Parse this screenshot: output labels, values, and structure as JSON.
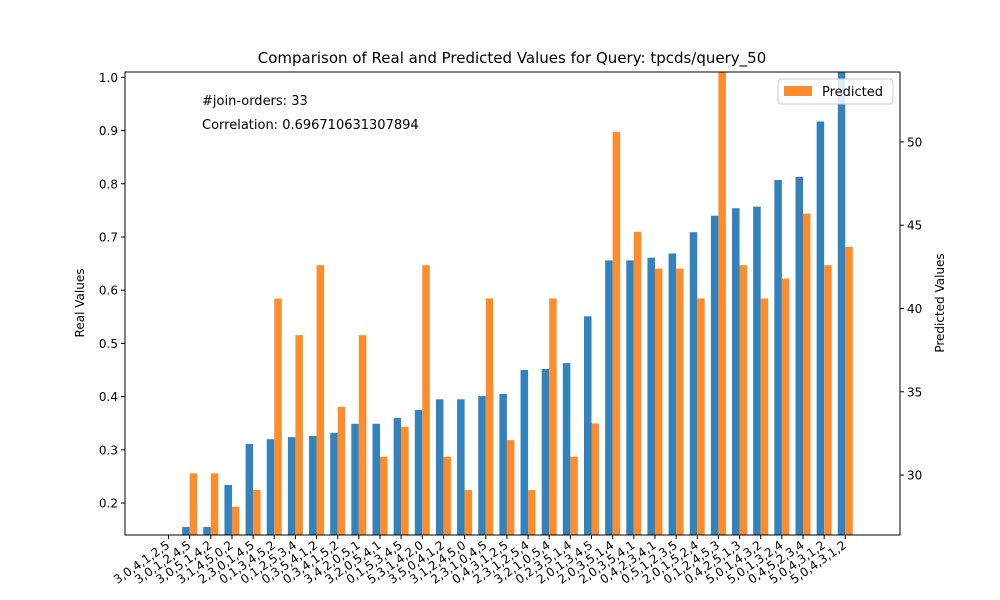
{
  "chart_data": {
    "type": "bar",
    "title": "Comparison of Real and Predicted Values for Query: tpcds/query_50",
    "ylabel_left": "Real Values",
    "ylabel_right": "Predicted Values",
    "xlabel": "",
    "ylim_left": [
      0.14,
      1.01
    ],
    "ylim_right": [
      26.4,
      54.2
    ],
    "yticks_left": [
      "0.2",
      "0.3",
      "0.4",
      "0.5",
      "0.6",
      "0.7",
      "0.8",
      "0.9",
      "1.0"
    ],
    "yticks_right": [
      "30",
      "35",
      "40",
      "45",
      "50"
    ],
    "grid": false,
    "legend": {
      "placement": "top-right",
      "entries": [
        "Predicted"
      ]
    },
    "annotations": [
      "#join-orders: 33",
      "Correlation: 0.696710631307894"
    ],
    "colors": {
      "real": "#3182bd",
      "predicted": "#fd8d2c"
    },
    "categories": [
      "3,0,4,1,2,5",
      "3,0,1,2,4,5",
      "3,0,5,1,4,2",
      "3,1,4,5,0,2",
      "2,3,0,1,4,5",
      "0,1,3,4,5,2",
      "0,1,2,5,3,4",
      "0,3,5,4,1,2",
      "0,3,4,1,5,2",
      "3,4,2,0,5,1",
      "3,2,0,5,4,1",
      "0,1,5,3,4,5",
      "5,3,1,4,2,0",
      "3,5,0,4,1,2",
      "3,1,2,4,5,0",
      "2,3,1,0,4,5",
      "0,4,3,1,2,5",
      "2,3,1,2,5,4",
      "3,2,1,0,5,4",
      "0,2,3,5,1,4",
      "2,0,1,3,4,5",
      "2,0,3,5,1,4",
      "2,0,3,5,4,1",
      "0,4,2,3,4,1",
      "0,5,1,2,3,5",
      "2,0,1,5,2,4",
      "0,1,2,4,5,3",
      "0,4,2,5,1,3",
      "5,0,1,4,3,2",
      "5,0,1,3,2,4",
      "0,4,5,2,3,4",
      "5,0,4,3,1,2",
      "5,0,4,3,1,2"
    ],
    "series": [
      {
        "name": "",
        "axis": "left",
        "values": [
          0.135,
          0.155,
          0.155,
          0.234,
          0.311,
          0.32,
          0.324,
          0.326,
          0.332,
          0.349,
          0.349,
          0.36,
          0.375,
          0.395,
          0.395,
          0.401,
          0.405,
          0.45,
          0.452,
          0.463,
          0.551,
          0.656,
          0.656,
          0.661,
          0.669,
          0.709,
          0.74,
          0.754,
          0.757,
          0.807,
          0.813,
          0.917,
          1.01
        ]
      },
      {
        "name": "Predicted",
        "axis": "right",
        "values": [
          26.4,
          30.1,
          30.1,
          28.1,
          29.1,
          40.6,
          38.4,
          42.6,
          34.1,
          38.4,
          31.1,
          32.9,
          42.6,
          31.1,
          29.1,
          40.6,
          32.1,
          29.1,
          40.6,
          31.1,
          33.1,
          50.6,
          44.6,
          42.4,
          42.4,
          40.6,
          54.2,
          42.6,
          40.6,
          41.8,
          45.7,
          42.6,
          43.7
        ]
      }
    ]
  }
}
